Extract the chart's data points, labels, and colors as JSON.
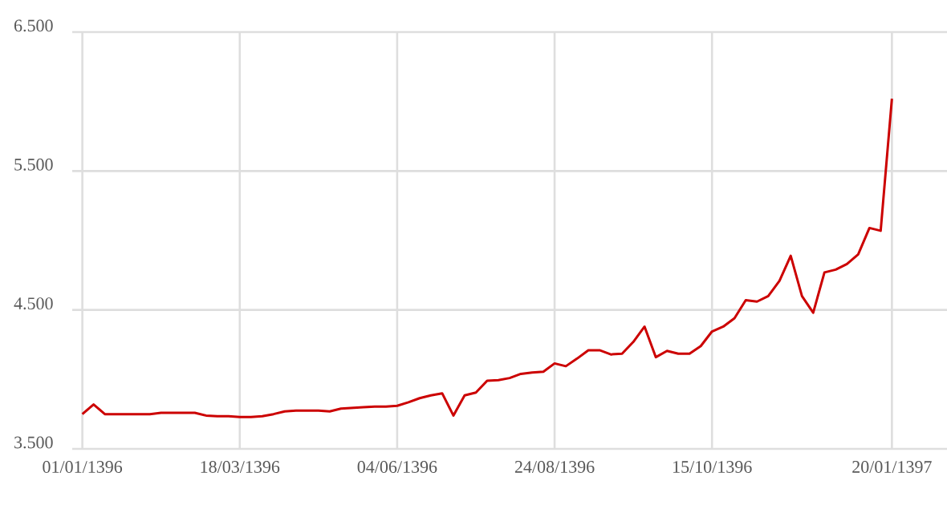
{
  "chart_data": {
    "type": "line",
    "categories": [
      "01/01/1396",
      null,
      null,
      null,
      null,
      null,
      null,
      null,
      null,
      null,
      null,
      null,
      null,
      null,
      "18/03/1396",
      null,
      null,
      null,
      null,
      null,
      null,
      null,
      null,
      null,
      null,
      null,
      null,
      null,
      "04/06/1396",
      null,
      null,
      null,
      null,
      null,
      null,
      null,
      null,
      null,
      null,
      null,
      null,
      null,
      "24/08/1396",
      null,
      null,
      null,
      null,
      null,
      null,
      null,
      null,
      null,
      null,
      null,
      null,
      null,
      "15/10/1396",
      null,
      null,
      null,
      null,
      null,
      null,
      null,
      null,
      null,
      null,
      null,
      null,
      null,
      null,
      null,
      "20/01/1397"
    ],
    "series": [
      {
        "color": "#cc0000",
        "values": [
          3750,
          3820,
          3750,
          3750,
          3750,
          3750,
          3750,
          3760,
          3760,
          3760,
          3760,
          3740,
          3735,
          3735,
          3730,
          3730,
          3735,
          3750,
          3770,
          3775,
          3775,
          3775,
          3770,
          3790,
          3795,
          3800,
          3805,
          3805,
          3810,
          3835,
          3865,
          3885,
          3900,
          3740,
          3885,
          3905,
          3990,
          3995,
          4010,
          4040,
          4050,
          4055,
          4115,
          4095,
          4150,
          4210,
          4210,
          4180,
          4185,
          4270,
          4380,
          4160,
          4205,
          4185,
          4185,
          4240,
          4345,
          4380,
          4440,
          4570,
          4560,
          4600,
          4710,
          4890,
          4600,
          4480,
          4770,
          4790,
          4830,
          4900,
          5090,
          5070,
          6020
        ]
      }
    ],
    "ylim": [
      3500,
      6500
    ],
    "yticks": [
      {
        "value": 3500,
        "label": "3.500"
      },
      {
        "value": 4500,
        "label": "4.500"
      },
      {
        "value": 5500,
        "label": "5.500"
      },
      {
        "value": 6500,
        "label": "6.500"
      }
    ],
    "grid": true
  }
}
